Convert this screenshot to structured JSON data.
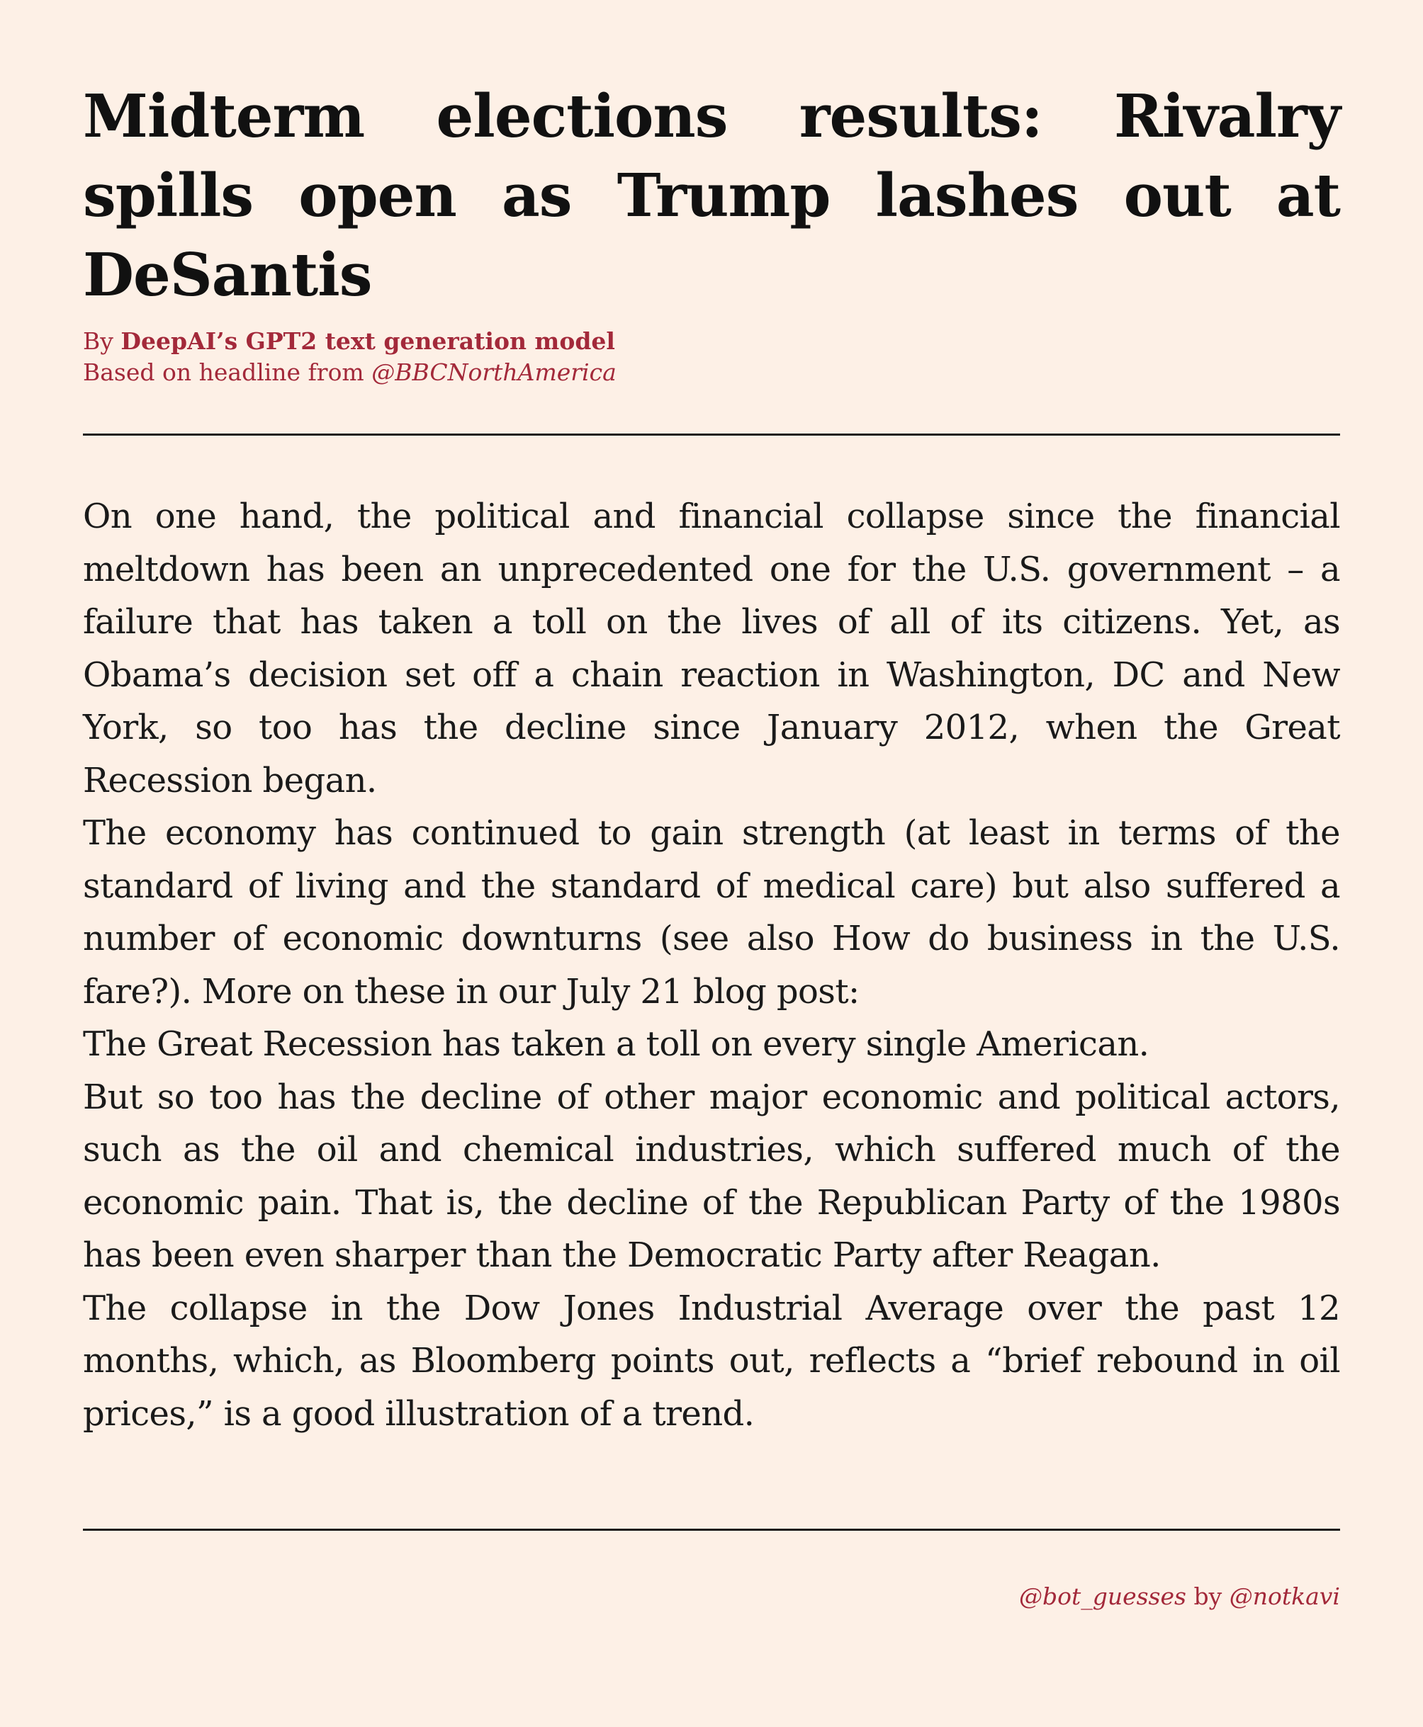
{
  "article": {
    "headline": "Midterm elections results: Rivalry spills open as Trump lashes out at DeSantis",
    "byline": {
      "prefix": "By",
      "author": "DeepAI’s GPT2 text generation model",
      "source_prefix": "Based on headline from",
      "source_handle": "@BBCNorthAmerica"
    },
    "paragraphs": [
      "On one hand, the political and financial collapse since the financial meltdown has been an unprecedented one for the U.S. government – a failure that has taken a toll on the lives of all of its citizens. Yet, as Obama’s decision set off a chain reaction in Washington, DC and New York, so too has the decline since January 2012, when the Great Recession began.",
      "The economy has continued to gain strength (at least in terms of the standard of living and the standard of medical care) but also suffered a number of economic downturns (see also How do business in the U.S. fare?). More on these in our July 21 blog post:",
      "The Great Recession has taken a toll on every single American.",
      "But so too has the decline of other major economic and political actors, such as the oil and chemical industries, which suffered much of the economic pain. That is, the decline of the Republican Party of the 1980s has been even sharper than the Democratic Party after Reagan.",
      "The collapse in the Dow Jones Industrial Average over the past 12 months, which, as Bloomberg points out, reflects a “brief rebound in oil prices,” is a good illustration of a trend."
    ]
  },
  "footer": {
    "bot_handle": "@bot_guesses",
    "connector": "by",
    "author_handle": "@notkavi"
  },
  "colors": {
    "background": "#fdf0e6",
    "accent": "#a3293a",
    "text": "#1a1a1a"
  }
}
